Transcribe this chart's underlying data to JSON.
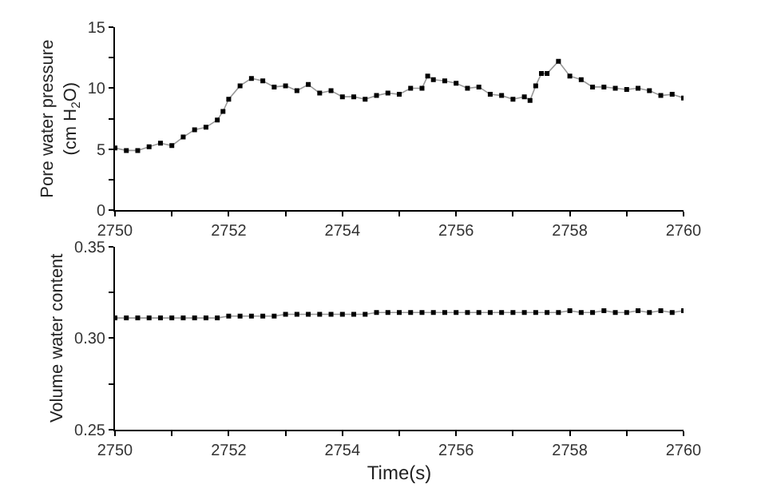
{
  "chart_data": [
    {
      "type": "line",
      "marker": "square",
      "color": "#000000",
      "ylabel": "Pore water pressure\n(cm H$_{2}$O)",
      "x": [
        2750,
        2750.2,
        2750.4,
        2750.6,
        2750.8,
        2751,
        2751.2,
        2751.4,
        2751.6,
        2751.8,
        2751.9,
        2752,
        2752.2,
        2752.4,
        2752.6,
        2752.8,
        2753,
        2753.2,
        2753.4,
        2753.6,
        2753.8,
        2754,
        2754.2,
        2754.4,
        2754.6,
        2754.8,
        2755,
        2755.2,
        2755.4,
        2755.5,
        2755.6,
        2755.8,
        2756,
        2756.2,
        2756.4,
        2756.6,
        2756.8,
        2757,
        2757.2,
        2757.3,
        2757.4,
        2757.5,
        2757.6,
        2757.8,
        2758,
        2758.2,
        2758.4,
        2758.6,
        2758.8,
        2759,
        2759.2,
        2759.4,
        2759.6,
        2759.8,
        2760
      ],
      "values": [
        5.1,
        4.9,
        4.9,
        5.2,
        5.5,
        5.3,
        6.0,
        6.6,
        6.8,
        7.4,
        8.1,
        9.1,
        10.2,
        10.8,
        10.6,
        10.1,
        10.2,
        9.8,
        10.3,
        9.6,
        9.8,
        9.3,
        9.3,
        9.1,
        9.4,
        9.6,
        9.5,
        10.0,
        10.0,
        11.0,
        10.7,
        10.6,
        10.4,
        10.0,
        10.1,
        9.5,
        9.4,
        9.1,
        9.3,
        9.0,
        10.2,
        11.2,
        11.2,
        12.2,
        11.0,
        10.7,
        10.1,
        10.1,
        10.0,
        9.9,
        10.0,
        9.8,
        9.4,
        9.5,
        9.2
      ],
      "xlim": [
        2750,
        2760
      ],
      "xticks": [
        2750,
        {
          "value": 2751,
          "label": null
        },
        2752,
        {
          "value": 2753,
          "label": null
        },
        2754,
        {
          "value": 2755,
          "label": null
        },
        2756,
        {
          "value": 2757,
          "label": null
        },
        2758,
        {
          "value": 2759,
          "label": null
        },
        2760
      ],
      "ylim": [
        0,
        15
      ],
      "yticks": [
        0,
        {
          "value": 2.5,
          "label": null
        },
        5,
        {
          "value": 7.5,
          "label": null
        },
        10,
        {
          "value": 12.5,
          "label": null
        },
        15
      ]
    },
    {
      "type": "line",
      "marker": "square",
      "color": "#000000",
      "ylabel": "Volume water content",
      "xlabel": "Time(s)",
      "x": [
        2750,
        2750.2,
        2750.4,
        2750.6,
        2750.8,
        2751,
        2751.2,
        2751.4,
        2751.6,
        2751.8,
        2752,
        2752.2,
        2752.4,
        2752.6,
        2752.8,
        2753,
        2753.2,
        2753.4,
        2753.6,
        2753.8,
        2754,
        2754.2,
        2754.4,
        2754.6,
        2754.8,
        2755,
        2755.2,
        2755.4,
        2755.6,
        2755.8,
        2756,
        2756.2,
        2756.4,
        2756.6,
        2756.8,
        2757,
        2757.2,
        2757.4,
        2757.6,
        2757.8,
        2758,
        2758.2,
        2758.4,
        2758.6,
        2758.8,
        2759,
        2759.2,
        2759.4,
        2759.6,
        2759.8,
        2760
      ],
      "values": [
        0.311,
        0.311,
        0.311,
        0.311,
        0.311,
        0.311,
        0.311,
        0.311,
        0.311,
        0.311,
        0.312,
        0.312,
        0.312,
        0.312,
        0.312,
        0.313,
        0.313,
        0.313,
        0.313,
        0.313,
        0.313,
        0.313,
        0.313,
        0.314,
        0.314,
        0.314,
        0.314,
        0.314,
        0.314,
        0.314,
        0.314,
        0.314,
        0.314,
        0.314,
        0.314,
        0.314,
        0.314,
        0.314,
        0.314,
        0.314,
        0.315,
        0.314,
        0.314,
        0.315,
        0.314,
        0.314,
        0.315,
        0.314,
        0.315,
        0.314,
        0.315
      ],
      "xlim": [
        2750,
        2760
      ],
      "xticks": [
        2750,
        {
          "value": 2751,
          "label": null
        },
        2752,
        {
          "value": 2753,
          "label": null
        },
        2754,
        {
          "value": 2755,
          "label": null
        },
        2756,
        {
          "value": 2757,
          "label": null
        },
        2758,
        {
          "value": 2759,
          "label": null
        },
        2760
      ],
      "ylim": [
        0.25,
        0.35
      ],
      "yticks": [
        0.25,
        {
          "value": 0.275,
          "label": null
        },
        {
          "value": 0.3,
          "label": "0.30"
        },
        {
          "value": 0.325,
          "label": null
        },
        0.35
      ]
    }
  ]
}
